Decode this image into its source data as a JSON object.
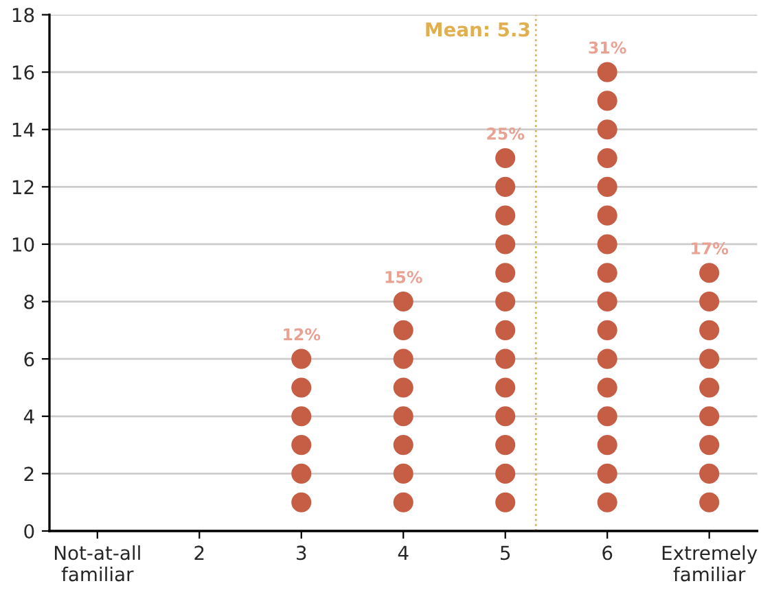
{
  "chart_data": {
    "type": "scatter",
    "x": [
      3,
      3,
      3,
      3,
      3,
      3,
      4,
      4,
      4,
      4,
      4,
      4,
      4,
      4,
      5,
      5,
      5,
      5,
      5,
      5,
      5,
      5,
      5,
      5,
      5,
      5,
      5,
      6,
      6,
      6,
      6,
      6,
      6,
      6,
      6,
      6,
      6,
      6,
      6,
      6,
      6,
      6,
      6,
      7,
      7,
      7,
      7,
      7,
      7,
      7,
      7,
      7
    ],
    "series": [
      {
        "color": "#c65d45",
        "values": [
          1,
          2,
          3,
          4,
          5,
          6,
          1,
          2,
          3,
          4,
          5,
          6,
          7,
          8,
          1,
          2,
          3,
          4,
          5,
          6,
          7,
          8,
          9,
          10,
          11,
          12,
          13,
          1,
          2,
          3,
          4,
          5,
          6,
          7,
          8,
          9,
          10,
          11,
          12,
          13,
          14,
          15,
          16,
          1,
          2,
          3,
          4,
          5,
          6,
          7,
          8,
          9
        ]
      }
    ],
    "marker": "circle",
    "xlim": [
      0.53,
      7.47
    ],
    "xticks": [
      {
        "value": 1,
        "label": "Not-at-all\nfamiliar"
      },
      2,
      3,
      4,
      5,
      6,
      {
        "value": 7,
        "label": "Extremely\nfamiliar"
      }
    ],
    "ylim": [
      0,
      18
    ],
    "yticks": [
      0,
      2,
      4,
      6,
      8,
      10,
      12,
      14,
      16,
      18
    ],
    "grid": "y",
    "ref_lines": [
      {
        "axis": "x",
        "value": 5.3,
        "label": "Mean: 5.3",
        "color": "#e0b050",
        "line_style": "dotted"
      }
    ],
    "annotations": [
      {
        "text": "12%",
        "x": 3,
        "y": 6
      },
      {
        "text": "15%",
        "x": 4,
        "y": 8
      },
      {
        "text": "25%",
        "x": 5,
        "y": 13
      },
      {
        "text": "31%",
        "x": 6,
        "y": 16
      },
      {
        "text": "17%",
        "x": 7,
        "y": 9
      }
    ]
  }
}
